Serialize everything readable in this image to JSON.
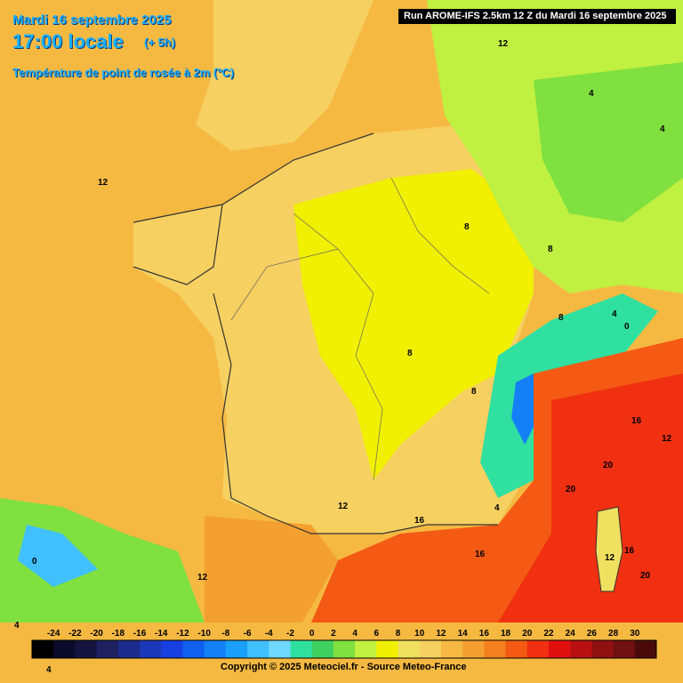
{
  "header": {
    "date": "Mardi 16 septembre 2025",
    "time": "17:00 locale",
    "offset": "(+ 5h)",
    "parameter": "Température de point de rosée à 2m (°C)",
    "run": "Run AROME-IFS 2.5km 12 Z du Mardi 16 septembre 2025"
  },
  "legend": {
    "ticks": [
      "-24",
      "-22",
      "-20",
      "-18",
      "-16",
      "-14",
      "-12",
      "-10",
      "-8",
      "-6",
      "-4",
      "-2",
      "0",
      "2",
      "4",
      "6",
      "8",
      "10",
      "12",
      "14",
      "16",
      "18",
      "20",
      "22",
      "24",
      "26",
      "28",
      "30"
    ],
    "colors": [
      "#000000",
      "#0a0a2a",
      "#14143f",
      "#1e2060",
      "#1c2c8c",
      "#1a38b8",
      "#1840e0",
      "#1060f0",
      "#1480f5",
      "#1aa0f8",
      "#40c0ff",
      "#70d8ff",
      "#30e0a0",
      "#40d060",
      "#80e040",
      "#c0f040",
      "#f0f000",
      "#f0e060",
      "#f6d060",
      "#f6b840",
      "#f4a030",
      "#f48020",
      "#f45a14",
      "#f03010",
      "#e01010",
      "#b81010",
      "#901010",
      "#701010",
      "#4a0a0a"
    ]
  },
  "map_labels": [
    {
      "name": "label-12-ireland",
      "text": "12"
    },
    {
      "name": "label-12-uk",
      "text": "12"
    },
    {
      "name": "label-4-germany",
      "text": "4"
    },
    {
      "name": "label-4-east",
      "text": "4"
    },
    {
      "name": "label-8-north",
      "text": "8"
    },
    {
      "name": "label-8-alsace",
      "text": "8"
    },
    {
      "name": "label-8-alps1",
      "text": "8"
    },
    {
      "name": "label-8-centre",
      "text": "8"
    },
    {
      "name": "label-8-jura",
      "text": "8"
    },
    {
      "name": "label-4-alps",
      "text": "4"
    },
    {
      "name": "label-0-alps",
      "text": "0"
    },
    {
      "name": "label-16-liguria",
      "text": "16"
    },
    {
      "name": "label-12-italy",
      "text": "12"
    },
    {
      "name": "label-20-sea1",
      "text": "20"
    },
    {
      "name": "label-20-sea2",
      "text": "20"
    },
    {
      "name": "label-4-provence",
      "text": "4"
    },
    {
      "name": "label-16-rhone",
      "text": "16"
    },
    {
      "name": "label-12-south",
      "text": "12"
    },
    {
      "name": "label-16-med",
      "text": "16"
    },
    {
      "name": "label-12-corsica",
      "text": "12"
    },
    {
      "name": "label-16-corsica",
      "text": "16"
    },
    {
      "name": "label-20-sardinia",
      "text": "20"
    },
    {
      "name": "label-12-pyrenees",
      "text": "12"
    },
    {
      "name": "label-0-spain",
      "text": "0"
    },
    {
      "name": "label-4-spain",
      "text": "4"
    },
    {
      "name": "label-4-spain-bottom",
      "text": "4"
    }
  ],
  "copyright": "Copyright © 2025 Meteociel.fr - Source Meteo-France"
}
